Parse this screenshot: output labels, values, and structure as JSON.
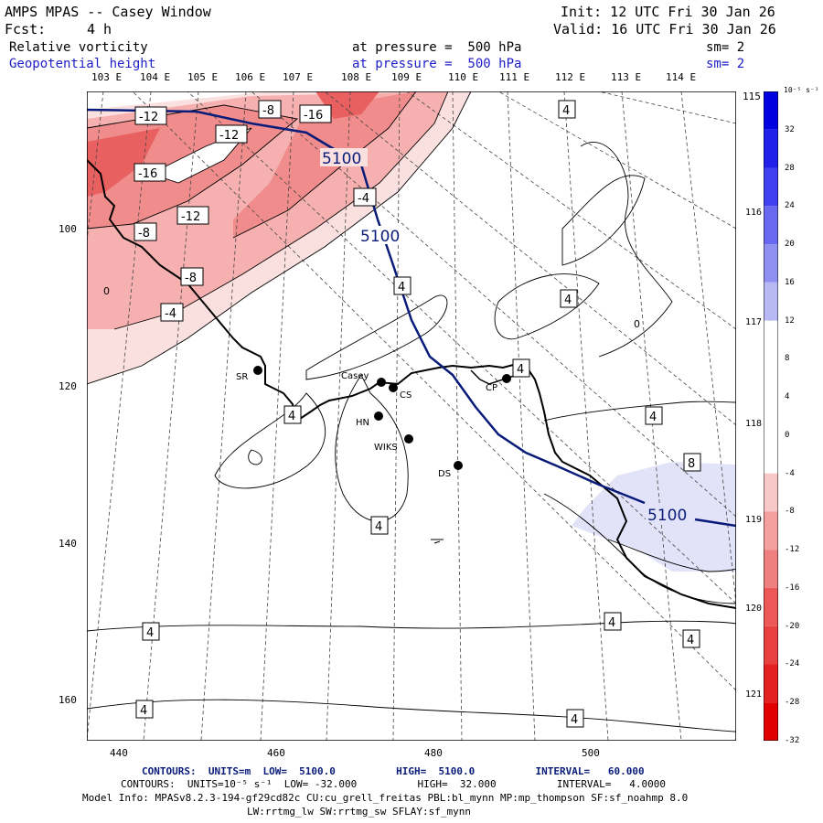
{
  "header": {
    "title": "AMPS MPAS -- Casey Window",
    "fcst_label": "Fcst:",
    "fcst_value": "4 h",
    "init": "Init: 12 UTC Fri 30 Jan 26",
    "valid": "Valid: 16 UTC Fri 30 Jan 26",
    "field1_name": "Relative vorticity",
    "field1_level": "at pressure =  500 hPa",
    "field1_sm": "sm= 2",
    "field2_name": "Geopotential height",
    "field2_level": "at pressure =  500 hPa",
    "field2_sm": "sm= 2"
  },
  "colors": {
    "neg_strong": "#e83030",
    "neg_mid": "#f08080",
    "neg_light": "#f8c8c8",
    "pos_light": "#dfe0f8",
    "height_line": "#0a1c7a",
    "coast": "#000000",
    "background": "#ffffff"
  },
  "longitude_labels": [
    "103 E",
    "104 E",
    "105 E",
    "106 E",
    "107 E",
    "108 E",
    "109 E",
    "110 E",
    "111 E",
    "112 E",
    "113 E",
    "114 E",
    "115 E"
  ],
  "right_longitude_labels": [
    "116 E",
    "117 E",
    "118 E",
    "119 E",
    "120 E",
    "121 E"
  ],
  "x_axis_ticks": [
    "440",
    "460",
    "480",
    "500"
  ],
  "y_axis_ticks": [
    "100",
    "120",
    "140",
    "160"
  ],
  "colorbar": {
    "unit": "10⁻⁵ s⁻¹",
    "labels": [
      "32",
      "28",
      "24",
      "20",
      "16",
      "12",
      "8",
      "4",
      "0",
      "-4",
      "-8",
      "-12",
      "-16",
      "-20",
      "-24",
      "-28",
      "-32"
    ],
    "colors": [
      "#0000e0",
      "#2020e8",
      "#4040f0",
      "#6868f0",
      "#9090f0",
      "#b8b8f4",
      "#ffffff",
      "#ffffff",
      "#ffffff",
      "#ffffff",
      "#f8c8c8",
      "#f4a0a0",
      "#f08080",
      "#ec5858",
      "#e84040",
      "#e42020",
      "#e00000"
    ]
  },
  "contour_labels": [
    "-12",
    "-8",
    "-16",
    "-12",
    "-16",
    "-12",
    "-8",
    "-8",
    "-4",
    "-4",
    "4",
    "4",
    "4",
    "4",
    "4",
    "4",
    "4",
    "8",
    "4",
    "4",
    "4",
    "4",
    "4",
    "0",
    "0"
  ],
  "height_labels": [
    "5100",
    "5100",
    "5100"
  ],
  "stations": [
    {
      "name": "SR"
    },
    {
      "name": "Casey"
    },
    {
      "name": "CS"
    },
    {
      "name": "CP"
    },
    {
      "name": "HN"
    },
    {
      "name": "WIKS"
    },
    {
      "name": "DS"
    }
  ],
  "footer": {
    "line1": "CONTOURS:  UNITS=m  LOW=  5100.0          HIGH=  5100.0          INTERVAL=   60.000",
    "line2": "CONTOURS:  UNITS=10⁻⁵ s⁻¹  LOW= -32.000          HIGH=  32.000          INTERVAL=   4.0000",
    "line3": "Model Info: MPASv8.2.3-194-gf29cd82c CU:cu_grell_freitas PBL:bl_mynn MP:mp_thompson SF:sf_noahmp 8.0",
    "line4": "LW:rrtmg_lw SW:rrtmg_sw SFLAY:sf_mynn"
  }
}
